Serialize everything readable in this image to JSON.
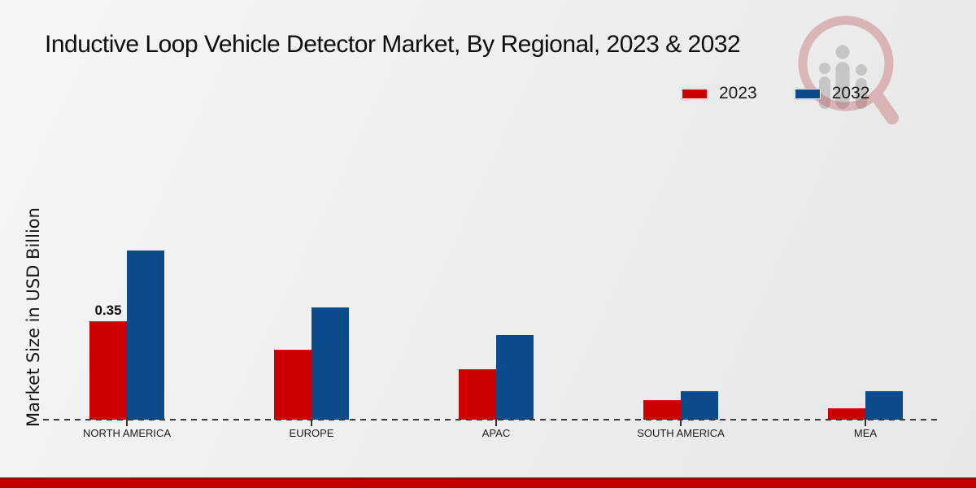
{
  "title": "Inductive Loop Vehicle Detector Market, By Regional, 2023 & 2032",
  "legend": [
    {
      "label": "2023",
      "color": "#CC0000"
    },
    {
      "label": "2032",
      "color": "#0B4A8B"
    }
  ],
  "colors": {
    "bar_red": "#CC0000",
    "bar_blue": "#0B4A8B",
    "footer_accent": "#C50000",
    "axis_line": "#3A3A3A"
  },
  "watermark": "magnifier-people-logo",
  "chart_data": {
    "type": "bar",
    "title": "Inductive Loop Vehicle Detector Market, By Regional, 2023 & 2032",
    "categories": [
      "NORTH AMERICA",
      "EUROPE",
      "APAC",
      "SOUTH AMERICA",
      "MEA"
    ],
    "series": [
      {
        "name": "2023",
        "color": "#CC0000",
        "values": [
          0.35,
          0.25,
          0.18,
          0.07,
          0.04
        ],
        "labels": [
          "0.35",
          "",
          "",
          "",
          ""
        ]
      },
      {
        "name": "2032",
        "color": "#0B4A8B",
        "values": [
          0.6,
          0.4,
          0.3,
          0.1,
          0.1
        ],
        "labels": [
          "",
          "",
          "",
          "",
          ""
        ]
      }
    ],
    "xlabel": "",
    "ylabel": "Market Size in USD Billion",
    "ylim": [
      0,
      0.65
    ],
    "grid": false,
    "legend_position": "top-right",
    "baseline_style": "dashed"
  }
}
